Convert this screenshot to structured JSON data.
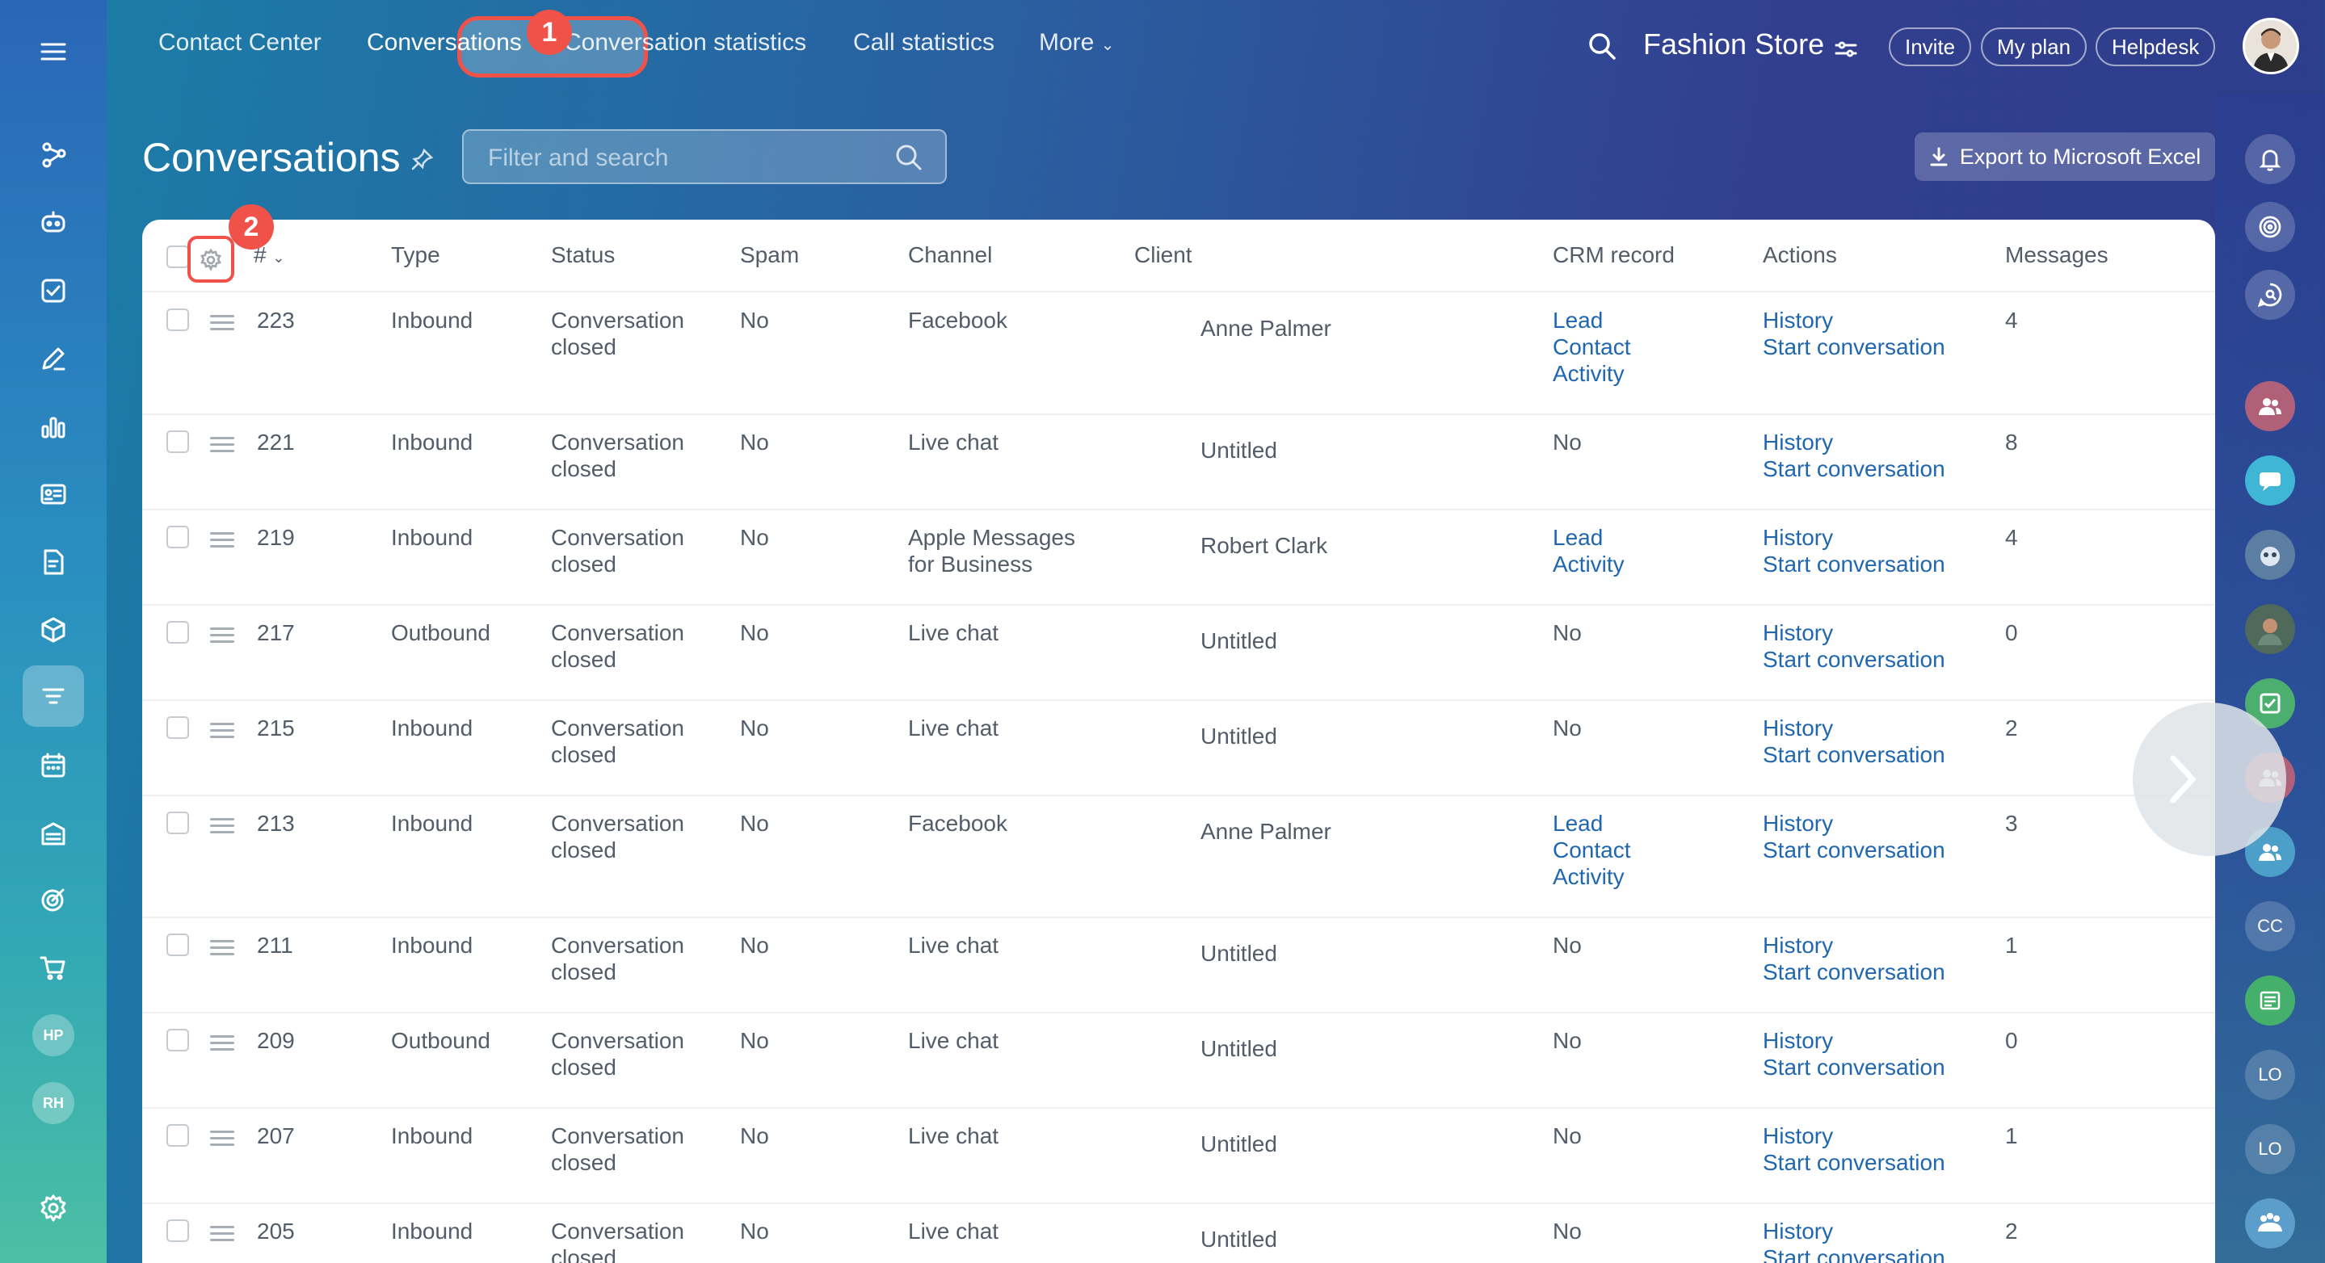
{
  "nav": {
    "contact_center": "Contact Center",
    "conversations": "Conversations",
    "conversation_statistics": "Conversation statistics",
    "call_statistics": "Call statistics",
    "more": "More",
    "workspace_name": "Fashion Store",
    "invite": "Invite",
    "my_plan": "My plan",
    "helpdesk": "Helpdesk"
  },
  "callouts": {
    "first": "1",
    "second": "2"
  },
  "page": {
    "title": "Conversations",
    "search_placeholder": "Filter and search",
    "export_label": "Export to Microsoft Excel"
  },
  "sidebar_avatars": [
    "HP",
    "RH"
  ],
  "right_avatars": [
    "CC",
    "LO",
    "LO"
  ],
  "table": {
    "headers": {
      "id": "#",
      "type": "Type",
      "status": "Status",
      "spam": "Spam",
      "channel": "Channel",
      "client": "Client",
      "crm": "CRM record",
      "actions": "Actions",
      "messages": "Messages"
    },
    "rows": [
      {
        "id": "223",
        "type": "Inbound",
        "status1": "Conversation",
        "status2": "closed",
        "spam": "No",
        "channel1": "Facebook",
        "channel2": "",
        "client": "Anne Palmer",
        "crm": [
          "Lead",
          "Contact",
          "Activity"
        ],
        "action1": "History",
        "action2": "Start conversation",
        "messages": "4"
      },
      {
        "id": "221",
        "type": "Inbound",
        "status1": "Conversation",
        "status2": "closed",
        "spam": "No",
        "channel1": "Live chat",
        "channel2": "",
        "client": "Untitled",
        "crm_text": "No",
        "action1": "History",
        "action2": "Start conversation",
        "messages": "8"
      },
      {
        "id": "219",
        "type": "Inbound",
        "status1": "Conversation",
        "status2": "closed",
        "spam": "No",
        "channel1": "Apple Messages",
        "channel2": "for Business",
        "client": "Robert Clark",
        "crm": [
          "Lead",
          "Activity"
        ],
        "action1": "History",
        "action2": "Start conversation",
        "messages": "4"
      },
      {
        "id": "217",
        "type": "Outbound",
        "status1": "Conversation",
        "status2": "closed",
        "spam": "No",
        "channel1": "Live chat",
        "channel2": "",
        "client": "Untitled",
        "crm_text": "No",
        "action1": "History",
        "action2": "Start conversation",
        "messages": "0"
      },
      {
        "id": "215",
        "type": "Inbound",
        "status1": "Conversation",
        "status2": "closed",
        "spam": "No",
        "channel1": "Live chat",
        "channel2": "",
        "client": "Untitled",
        "crm_text": "No",
        "action1": "History",
        "action2": "Start conversation",
        "messages": "2"
      },
      {
        "id": "213",
        "type": "Inbound",
        "status1": "Conversation",
        "status2": "closed",
        "spam": "No",
        "channel1": "Facebook",
        "channel2": "",
        "client": "Anne Palmer",
        "crm": [
          "Lead",
          "Contact",
          "Activity"
        ],
        "action1": "History",
        "action2": "Start conversation",
        "messages": "3"
      },
      {
        "id": "211",
        "type": "Inbound",
        "status1": "Conversation",
        "status2": "closed",
        "spam": "No",
        "channel1": "Live chat",
        "channel2": "",
        "client": "Untitled",
        "crm_text": "No",
        "action1": "History",
        "action2": "Start conversation",
        "messages": "1"
      },
      {
        "id": "209",
        "type": "Outbound",
        "status1": "Conversation",
        "status2": "closed",
        "spam": "No",
        "channel1": "Live chat",
        "channel2": "",
        "client": "Untitled",
        "crm_text": "No",
        "action1": "History",
        "action2": "Start conversation",
        "messages": "0"
      },
      {
        "id": "207",
        "type": "Inbound",
        "status1": "Conversation",
        "status2": "closed",
        "spam": "No",
        "channel1": "Live chat",
        "channel2": "",
        "client": "Untitled",
        "crm_text": "No",
        "action1": "History",
        "action2": "Start conversation",
        "messages": "1"
      },
      {
        "id": "205",
        "type": "Inbound",
        "status1": "Conversation",
        "status2": "closed",
        "spam": "No",
        "channel1": "Live chat",
        "channel2": "",
        "client": "Untitled",
        "crm_text": "No",
        "action1": "History",
        "action2": "Start conversation",
        "messages": "2"
      }
    ]
  },
  "colors": {
    "accent": "#f0524a",
    "link": "#2067b0"
  }
}
